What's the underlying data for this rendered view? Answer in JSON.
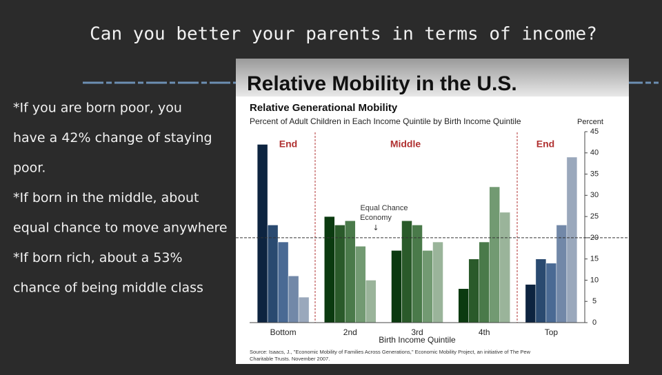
{
  "slide": {
    "title": "Can you better your parents in terms of income?",
    "bullets": [
      "*If you are born poor, you",
      "have a 42% change of staying",
      "poor.",
      "*If born in the middle, about",
      "equal chance to move anywhere",
      "*If born rich, about a 53%",
      "chance of being middle class"
    ],
    "image_title": "Relative Mobility in the U.S."
  },
  "chart_data": {
    "type": "grouped_bar",
    "title": "Relative Generational Mobility",
    "subtitle": "Percent of Adult Children in Each Income Quintile by Birth Income Quintile",
    "x_label": "Birth Income Quintile",
    "y_label": "Percent",
    "categories": [
      "Bottom",
      "2nd",
      "3rd",
      "4th",
      "Top"
    ],
    "series": [
      {
        "values": [
          42,
          25,
          17,
          8,
          9
        ]
      },
      {
        "values": [
          23,
          23,
          24,
          15,
          15
        ]
      },
      {
        "values": [
          19,
          24,
          23,
          19,
          14
        ]
      },
      {
        "values": [
          11,
          18,
          17,
          32,
          23
        ]
      },
      {
        "values": [
          6,
          10,
          19,
          26,
          39
        ]
      }
    ],
    "colors": [
      [
        "#0d2440",
        "#2a4a70",
        "#4a6a94",
        "#7288a8",
        "#9aa8bc"
      ],
      [
        "#0b3a10",
        "#2a5a2a",
        "#4a7a4a",
        "#729a72",
        "#9ab49a"
      ],
      [
        "#0b3a10",
        "#2a5a2a",
        "#4a7a4a",
        "#729a72",
        "#9ab49a"
      ],
      [
        "#0b3a10",
        "#2a5a2a",
        "#4a7a4a",
        "#729a72",
        "#9ab49a"
      ],
      [
        "#0d2440",
        "#2a4a70",
        "#4a6a94",
        "#7288a8",
        "#9aa8bc"
      ]
    ],
    "ylim": [
      0,
      45
    ],
    "yticks": [
      0,
      5,
      10,
      15,
      20,
      25,
      30,
      35,
      40,
      45
    ],
    "reference_line": 20,
    "annotations": [
      "End",
      "Middle",
      "End"
    ],
    "reference_label": [
      "Equal Chance",
      "Economy"
    ],
    "source": [
      "Source: Isaacs, J., \"Economic Mobility of Families Across Generations,\" Economic Mobility Project, an initiative of The Pew",
      "Charitable Trusts. November 2007."
    ]
  }
}
